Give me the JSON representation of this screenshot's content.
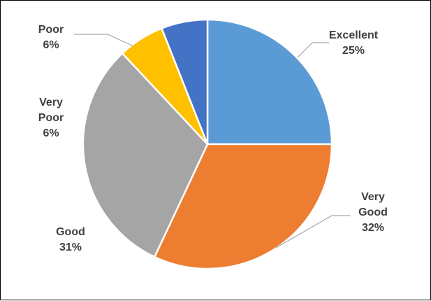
{
  "chart_data": {
    "type": "pie",
    "start_angle_deg": 0,
    "direction": "clockwise",
    "slices": [
      {
        "label": "Excellent",
        "lines": [
          "Excellent"
        ],
        "value": 25,
        "pct_text": "25%",
        "color": "#5B9BD5"
      },
      {
        "label": "Very Good",
        "lines": [
          "Very",
          "Good"
        ],
        "value": 32,
        "pct_text": "32%",
        "color": "#ED7D31"
      },
      {
        "label": "Good",
        "lines": [
          "Good"
        ],
        "value": 31,
        "pct_text": "31%",
        "color": "#A5A5A5"
      },
      {
        "label": "Poor",
        "lines": [
          "Poor"
        ],
        "value": 6,
        "pct_text": "6%",
        "color": "#FFC000"
      },
      {
        "label": "Very Poor",
        "lines": [
          "Very",
          "Poor"
        ],
        "value": 6,
        "pct_text": "6%",
        "color": "#4472C4"
      }
    ],
    "title": "",
    "legend": "none"
  }
}
